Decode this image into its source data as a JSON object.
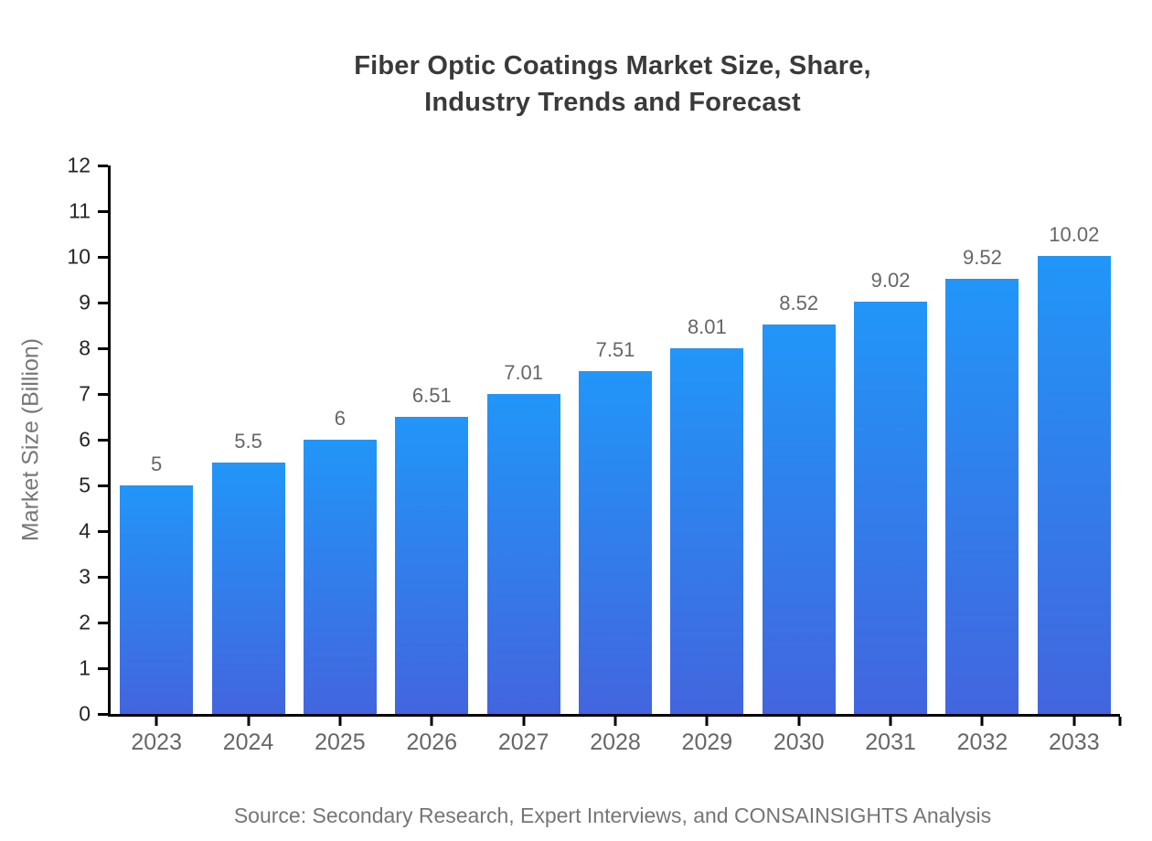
{
  "title": {
    "line1": "Fiber Optic Coatings Market Size, Share,",
    "line2": "Industry Trends and Forecast"
  },
  "source": "Source: Secondary Research, Expert Interviews, and CONSAINSIGHTS Analysis",
  "colors": {
    "bar_gradient_top": "#2196F8",
    "bar_gradient_bottom": "#4365DE",
    "axis": "#000000",
    "title_text": "#3a3a3a",
    "ytick_text": "#262626",
    "xtick_text": "#666666",
    "value_label_text": "#666666",
    "y_axis_label_text": "#777777",
    "source_text": "#757575"
  },
  "chart_data": {
    "type": "bar",
    "title": "Fiber Optic Coatings Market Size, Share, Industry Trends and Forecast",
    "xlabel": "",
    "ylabel": "Market Size (Billion)",
    "categories": [
      "2023",
      "2024",
      "2025",
      "2026",
      "2027",
      "2028",
      "2029",
      "2030",
      "2031",
      "2032",
      "2033"
    ],
    "values": [
      5,
      5.5,
      6,
      6.51,
      7.01,
      7.51,
      8.01,
      8.52,
      9.02,
      9.52,
      10.02
    ],
    "value_labels": [
      "5",
      "5.5",
      "6",
      "6.51",
      "7.01",
      "7.51",
      "8.01",
      "8.52",
      "9.02",
      "9.52",
      "10.02"
    ],
    "ylim": [
      0,
      12
    ],
    "ytick_step": 1,
    "yticks": [
      0,
      1,
      2,
      3,
      4,
      5,
      6,
      7,
      8,
      9,
      10,
      11,
      12
    ],
    "grid": false,
    "legend": false
  }
}
